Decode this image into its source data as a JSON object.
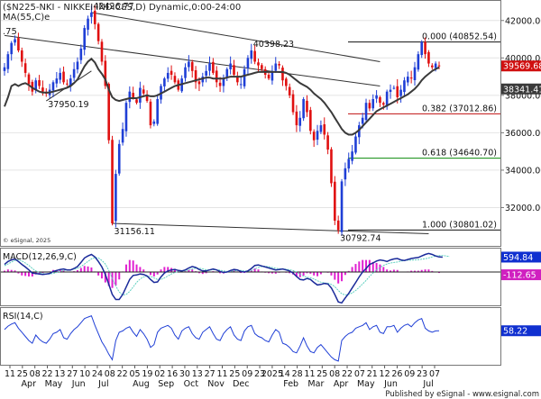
{
  "title": "($N225-NKI - NIKKEI INDICES,D) Dynamic,0:00-24:00",
  "ma_label": "MA(55,C)e",
  "top_left_fragment": ".75",
  "copyright": "© eSignal, 2025",
  "footer": "Published by eSignal - www.esignal.com",
  "colors": {
    "up": "#1f3fd6",
    "down": "#e01010",
    "ma": "#3a3a3a",
    "macd": "#1a2a9a",
    "signal": "#60d0c0",
    "hist": "#e020d0",
    "rsi": "#1f3fd6",
    "fib_green": "#0a8a0a",
    "fib_red": "#c01010",
    "badge_blue": "#1030d0",
    "badge_red": "#d01010"
  },
  "chart_data": [
    {
      "type": "candlestick",
      "title": "($N225-NKI - NIKKEI INDICES,D) Dynamic,0:00-24:00",
      "ylim": [
        30000,
        43000
      ],
      "y_ticks": [
        32000,
        34000,
        36000,
        38000,
        40000,
        42000
      ],
      "y_tick_labels": [
        "32000.00",
        "34000.00",
        "36000.00",
        "38000.00",
        "40000.00",
        "42000.00"
      ],
      "x_tick_labels": [
        "11",
        "25",
        "08",
        "22",
        "13",
        "27",
        "10",
        "24",
        "08",
        "22",
        "05",
        "19",
        "02",
        "16",
        "30",
        "13",
        "27",
        "11",
        "25",
        "09",
        "23",
        "2025",
        "14",
        "28",
        "11",
        "25",
        "08",
        "22",
        "07",
        "21",
        "12",
        "26",
        "09",
        "23",
        "07"
      ],
      "x_month_labels": [
        "Apr",
        "May",
        "Jun",
        "Jul",
        "Aug",
        "Sep",
        "Oct",
        "Nov",
        "Dec",
        "Feb",
        "Mar",
        "Apr",
        "May",
        "Jun",
        "Jul"
      ],
      "close_series": [
        39500,
        40200,
        40800,
        41000,
        40400,
        39800,
        39200,
        38600,
        38200,
        38800,
        38500,
        38200,
        38100,
        38300,
        38700,
        38900,
        39200,
        38700,
        38600,
        38900,
        39400,
        39800,
        40500,
        41600,
        42100,
        42426.77,
        41800,
        40900,
        39800,
        38500,
        35600,
        31156.11,
        33800,
        35400,
        36200,
        37600,
        38200,
        37900,
        37600,
        38400,
        38100,
        37700,
        36400,
        36600,
        37800,
        38500,
        38900,
        39200,
        39100,
        38700,
        38300,
        38900,
        39500,
        39800,
        39300,
        38700,
        38600,
        39000,
        39300,
        39700,
        39200,
        38700,
        38500,
        38900,
        39400,
        39700,
        39100,
        38700,
        38600,
        39400,
        40000,
        40398.23,
        39800,
        39600,
        39400,
        39100,
        38900,
        39300,
        39700,
        39600,
        38800,
        38500,
        38000,
        37100,
        36400,
        36800,
        37800,
        37100,
        36100,
        35600,
        36100,
        36400,
        35900,
        35100,
        33300,
        31300,
        30792.74,
        33400,
        34100,
        34600,
        35000,
        35800,
        36400,
        36800,
        37600,
        37300,
        37800,
        38000,
        37600,
        37500,
        38200,
        38300,
        38400,
        37900,
        38300,
        38800,
        39000,
        38900,
        39500,
        40200,
        40852.54,
        40200,
        39700,
        39500,
        39700,
        39569.68
      ],
      "ma_series": [
        37400,
        37900,
        38500,
        38600,
        38500,
        38600,
        38650,
        38550,
        38400,
        38300,
        38200,
        38150,
        38150,
        38150,
        38200,
        38250,
        38300,
        38350,
        38400,
        38500,
        38650,
        38850,
        39200,
        39550,
        39800,
        39950,
        39750,
        39400,
        39150,
        38850,
        38300,
        37900,
        37750,
        37700,
        37750,
        37800,
        37850,
        37850,
        37850,
        37900,
        37950,
        38000,
        37950,
        37950,
        38000,
        38100,
        38200,
        38300,
        38400,
        38500,
        38550,
        38600,
        38650,
        38700,
        38750,
        38800,
        38850,
        38900,
        38950,
        38950,
        38900,
        38900,
        38900,
        38900,
        38950,
        39000,
        39000,
        39000,
        39000,
        39050,
        39100,
        39150,
        39200,
        39250,
        39250,
        39250,
        39250,
        39250,
        39250,
        39250,
        39250,
        39200,
        39100,
        38950,
        38800,
        38650,
        38550,
        38450,
        38300,
        38100,
        37950,
        37800,
        37600,
        37350,
        37100,
        36800,
        36500,
        36200,
        36000,
        35900,
        35900,
        36000,
        36150,
        36350,
        36550,
        36750,
        36950,
        37150,
        37250,
        37350,
        37450,
        37550,
        37650,
        37750,
        37850,
        37950,
        38050,
        38200,
        38350,
        38550,
        38800,
        39000,
        39150,
        39300,
        39400,
        39500
      ],
      "annotations": [
        {
          "label": "42426.77",
          "x_index": 25,
          "y": 42426.77
        },
        {
          "label": "40398.23",
          "x_index": 71,
          "y": 40398.23
        },
        {
          "label": "37950.19",
          "x_index": 12,
          "y": 37950.19
        },
        {
          "label": "31156.11",
          "x_index": 31,
          "y": 31156.11
        },
        {
          "label": "30792.74",
          "x_index": 96,
          "y": 30792.74
        }
      ],
      "fib_levels": [
        {
          "label": "0.000 (40852.54)",
          "value": 40852.54,
          "color": "#111111"
        },
        {
          "label": "0.382 (37012.86)",
          "value": 37012.86,
          "color": "#c01010"
        },
        {
          "label": "0.618 (34640.70)",
          "value": 34640.7,
          "color": "#0a8a0a"
        },
        {
          "label": "1.000 (30801.02)",
          "value": 30801.02,
          "color": "#111111"
        }
      ],
      "badges": [
        {
          "label": "39569.68",
          "value": 39569.68,
          "color": "#d01010"
        },
        {
          "label": "38341.41",
          "value": 38341.41,
          "color": "#3a3a3a"
        }
      ],
      "trendlines": [
        {
          "name": "upper-resistance",
          "from": [
            0,
            41200
          ],
          "to": [
            108,
            38500
          ]
        },
        {
          "name": "long-resistance",
          "from": [
            25,
            42426.77
          ],
          "to": [
            108,
            39800
          ]
        },
        {
          "name": "lower-support",
          "from": [
            31,
            31156.11
          ],
          "to": [
            122,
            30600
          ]
        },
        {
          "name": "left-support",
          "from": [
            12,
            37700
          ],
          "to": [
            25,
            39300
          ]
        }
      ]
    },
    {
      "type": "line",
      "name": "MACD(12,26,9,C)",
      "ylim": [
        -1300,
        900
      ],
      "badges": [
        {
          "label": "594.84",
          "value": 594.84,
          "color": "#1030d0"
        },
        {
          "label": "-112.65",
          "value": -112.65,
          "color": "#d020c0"
        }
      ],
      "macd": [
        300,
        420,
        480,
        520,
        420,
        300,
        200,
        80,
        -40,
        -60,
        -80,
        -100,
        -80,
        -60,
        20,
        60,
        100,
        120,
        80,
        80,
        140,
        220,
        380,
        560,
        640,
        700,
        600,
        420,
        200,
        -100,
        -500,
        -900,
        -1100,
        -1100,
        -900,
        -600,
        -300,
        -140,
        -120,
        -80,
        -100,
        -160,
        -300,
        -420,
        -400,
        -200,
        -40,
        40,
        80,
        100,
        60,
        40,
        80,
        160,
        220,
        180,
        100,
        40,
        40,
        80,
        120,
        80,
        20,
        -20,
        0,
        60,
        100,
        80,
        20,
        0,
        40,
        140,
        260,
        280,
        240,
        200,
        160,
        120,
        80,
        100,
        120,
        80,
        40,
        -40,
        -180,
        -300,
        -320,
        -260,
        -300,
        -420,
        -520,
        -500,
        -460,
        -480,
        -640,
        -900,
        -1200,
        -1240,
        -1040,
        -860,
        -640,
        -420,
        -200,
        0,
        140,
        300,
        360,
        440,
        480,
        460,
        420,
        480,
        520,
        540,
        480,
        460,
        500,
        540,
        560,
        580,
        640,
        700,
        740,
        700,
        640,
        600,
        594.84
      ],
      "signal": [
        250,
        320,
        400,
        460,
        480,
        440,
        360,
        260,
        140,
        40,
        -20,
        -60,
        -80,
        -80,
        -60,
        -20,
        20,
        60,
        80,
        90,
        110,
        150,
        220,
        320,
        420,
        520,
        580,
        560,
        460,
        320,
        60,
        -260,
        -560,
        -800,
        -920,
        -900,
        -780,
        -600,
        -420,
        -280,
        -200,
        -170,
        -180,
        -240,
        -300,
        -300,
        -240,
        -160,
        -80,
        -20,
        20,
        40,
        50,
        80,
        120,
        150,
        150,
        120,
        90,
        80,
        90,
        90,
        70,
        40,
        20,
        20,
        40,
        60,
        60,
        40,
        30,
        60,
        120,
        180,
        220,
        230,
        210,
        180,
        150,
        130,
        120,
        110,
        90,
        60,
        0,
        -90,
        -170,
        -210,
        -230,
        -280,
        -350,
        -410,
        -440,
        -450,
        -500,
        -590,
        -740,
        -870,
        -920,
        -900,
        -840,
        -740,
        -620,
        -480,
        -340,
        -180,
        -40,
        80,
        180,
        260,
        320,
        360,
        380,
        400,
        430,
        460,
        470,
        470,
        480,
        490,
        510,
        530,
        560,
        600,
        640,
        660,
        660,
        640,
        620
      ],
      "hist": [
        50,
        100,
        80,
        60,
        -60,
        -140,
        -160,
        -180,
        -180,
        -100,
        -60,
        -40,
        0,
        20,
        80,
        80,
        80,
        60,
        0,
        -10,
        30,
        70,
        160,
        240,
        220,
        180,
        20,
        -140,
        -260,
        -420,
        -560,
        -640,
        -540,
        -300,
        20,
        300,
        480,
        460,
        300,
        200,
        100,
        10,
        -120,
        -180,
        -100,
        100,
        200,
        200,
        160,
        120,
        40,
        0,
        30,
        80,
        100,
        30,
        -50,
        -80,
        -50,
        0,
        30,
        -10,
        -50,
        -60,
        -20,
        40,
        60,
        20,
        -40,
        -40,
        10,
        80,
        140,
        100,
        20,
        -30,
        -50,
        -60,
        -70,
        -30,
        0,
        -30,
        -50,
        -100,
        -180,
        -210,
        -150,
        -50,
        -70,
        -140,
        -170,
        -90,
        -20,
        -30,
        -140,
        -310,
        -460,
        -370,
        -120,
        40,
        200,
        320,
        420,
        480,
        480,
        480,
        400,
        360,
        300,
        200,
        100,
        60,
        90,
        80,
        10,
        -10,
        20,
        50,
        50,
        50,
        80,
        100,
        100,
        40,
        -20,
        -40,
        -20
      ]
    },
    {
      "type": "line",
      "name": "RSI(14,C)",
      "ylim": [
        10,
        90
      ],
      "badges": [
        {
          "label": "58.22",
          "value": 58.22,
          "color": "#1030d0"
        }
      ],
      "values": [
        60,
        65,
        68,
        70,
        62,
        56,
        50,
        44,
        40,
        52,
        46,
        42,
        40,
        46,
        54,
        56,
        60,
        48,
        46,
        54,
        60,
        64,
        70,
        76,
        78,
        80,
        66,
        54,
        42,
        34,
        24,
        16,
        44,
        56,
        58,
        62,
        64,
        56,
        50,
        60,
        54,
        46,
        34,
        38,
        56,
        62,
        64,
        66,
        62,
        52,
        46,
        58,
        62,
        64,
        54,
        48,
        46,
        56,
        60,
        64,
        54,
        46,
        44,
        54,
        60,
        64,
        52,
        46,
        44,
        58,
        64,
        66,
        54,
        50,
        48,
        44,
        42,
        52,
        60,
        56,
        40,
        38,
        34,
        28,
        26,
        36,
        48,
        36,
        28,
        26,
        34,
        38,
        32,
        26,
        20,
        16,
        14,
        44,
        50,
        54,
        56,
        62,
        64,
        66,
        70,
        60,
        64,
        66,
        56,
        54,
        64,
        64,
        66,
        56,
        62,
        66,
        68,
        64,
        70,
        74,
        76,
        62,
        58,
        56,
        58,
        58.22
      ]
    }
  ]
}
